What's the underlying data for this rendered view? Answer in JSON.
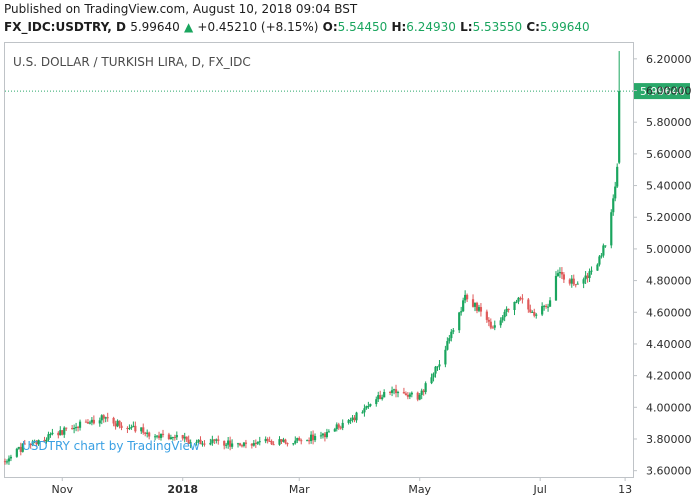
{
  "header": {
    "published_line": "Published on TradingView.com, August 10, 2018 09:04 BST",
    "symbol": "FX_IDC:USDTRY, D",
    "last": "5.99640",
    "change_arrow": "▲",
    "change": "+0.45210 (+8.15%)",
    "open_label": "O:",
    "open": "5.54450",
    "high_label": "H:",
    "high": "6.24930",
    "low_label": "L:",
    "low": "5.53550",
    "close_label": "C:",
    "close": "5.99640"
  },
  "colors": {
    "up": "#1aa55e",
    "down": "#e05a5a",
    "last_price_line": "#2aa86a",
    "watermark": "#3aa0e3"
  },
  "chart_data": {
    "type": "candlestick",
    "title": "U.S. DOLLAR / TURKISH LIRA, D, FX_IDC",
    "watermark": "USDTRY chart by TradingView",
    "last_price_label": "5.99640",
    "ylim": [
      3.56,
      6.3
    ],
    "y_ticks": [
      "6.20000",
      "6.00000",
      "5.80000",
      "5.60000",
      "5.40000",
      "5.20000",
      "5.00000",
      "4.80000",
      "4.60000",
      "4.40000",
      "4.20000",
      "4.00000",
      "3.80000",
      "3.60000"
    ],
    "y_tick_values": [
      6.2,
      6.0,
      5.8,
      5.6,
      5.4,
      5.2,
      5.0,
      4.8,
      4.6,
      4.4,
      4.2,
      4.0,
      3.8,
      3.6
    ],
    "x_ticks": [
      "Nov",
      "2018",
      "Mar",
      "May",
      "Jul",
      "13"
    ],
    "x_tick_dates": [
      "2017-11-01",
      "2018-01-01",
      "2018-03-01",
      "2018-05-01",
      "2018-07-01",
      "2018-08-13"
    ],
    "x_range": [
      "2017-10-03",
      "2018-08-17"
    ],
    "anchors": [
      [
        "2017-10-03",
        3.66
      ],
      [
        "2017-10-12",
        3.75
      ],
      [
        "2017-10-22",
        3.8
      ],
      [
        "2017-11-05",
        3.87
      ],
      [
        "2017-11-20",
        3.93
      ],
      [
        "2017-12-05",
        3.87
      ],
      [
        "2017-12-20",
        3.82
      ],
      [
        "2018-01-05",
        3.79
      ],
      [
        "2018-01-15",
        3.78
      ],
      [
        "2018-01-25",
        3.77
      ],
      [
        "2018-02-10",
        3.78
      ],
      [
        "2018-02-25",
        3.79
      ],
      [
        "2018-03-10",
        3.81
      ],
      [
        "2018-03-25",
        3.9
      ],
      [
        "2018-04-05",
        4.01
      ],
      [
        "2018-04-15",
        4.1
      ],
      [
        "2018-04-30",
        4.06
      ],
      [
        "2018-05-10",
        4.25
      ],
      [
        "2018-05-18",
        4.48
      ],
      [
        "2018-05-24",
        4.7
      ],
      [
        "2018-06-01",
        4.6
      ],
      [
        "2018-06-08",
        4.5
      ],
      [
        "2018-06-20",
        4.7
      ],
      [
        "2018-06-27",
        4.6
      ],
      [
        "2018-07-04",
        4.62
      ],
      [
        "2018-07-10",
        4.85
      ],
      [
        "2018-07-20",
        4.78
      ],
      [
        "2018-07-30",
        4.9
      ],
      [
        "2018-08-03",
        5.05
      ],
      [
        "2018-08-06",
        5.25
      ],
      [
        "2018-08-08",
        5.4
      ],
      [
        "2018-08-09",
        5.54
      ],
      [
        "2018-08-10",
        6.0
      ]
    ],
    "last_bar": {
      "date": "2018-08-10",
      "open": 5.5445,
      "high": 6.2493,
      "low": 5.5355,
      "close": 5.9964
    }
  }
}
